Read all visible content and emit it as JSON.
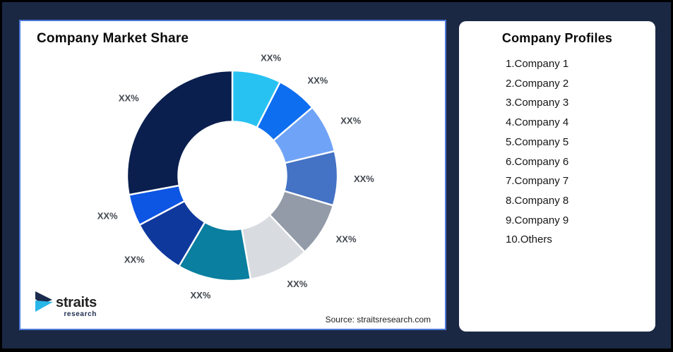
{
  "page": {
    "background_color": "#1B2844",
    "frame_color": "#000000"
  },
  "chart_card": {
    "border_color": "#4C78D8",
    "source": "Source: straitsresearch.com"
  },
  "logo": {
    "name": "straits",
    "subtitle": "research",
    "mark_top_color": "#1B2B4D",
    "mark_bottom_color": "#29B6E9"
  },
  "profiles": {
    "title": "Company Profiles",
    "items": [
      "1.Company 1",
      "2.Company 2",
      "3.Company 3",
      "4.Company 4",
      "5.Company 5",
      "6.Company 6",
      "7.Company 7",
      "8.Company 8",
      "9.Company 9",
      "10.Others"
    ]
  },
  "chart_data": {
    "type": "pie",
    "subtype": "donut",
    "title": "Company Market Share",
    "values_shown_as": "XX% placeholder labels (no numeric values printed)",
    "label_color": "#42474F",
    "geometry": {
      "outer_radius_px": 149,
      "inner_radius_px": 76.5,
      "label_radius_px": 172
    },
    "slices": [
      {
        "name": "Company 1",
        "display_label": "XX%",
        "start_deg": 0,
        "end_deg": 27,
        "share_pct_est": 7.5,
        "color": "#27C2F2"
      },
      {
        "name": "Company 2",
        "display_label": "XX%",
        "start_deg": 27,
        "end_deg": 49.5,
        "share_pct_est": 6.3,
        "color": "#0D6EF0"
      },
      {
        "name": "Company 3",
        "display_label": "XX%",
        "start_deg": 49.5,
        "end_deg": 76.5,
        "share_pct_est": 7.5,
        "color": "#6FA3F7"
      },
      {
        "name": "Company 4",
        "display_label": "XX%",
        "start_deg": 76.5,
        "end_deg": 106.5,
        "share_pct_est": 8.3,
        "color": "#4472C4"
      },
      {
        "name": "Company 5",
        "display_label": "XX%",
        "start_deg": 106.5,
        "end_deg": 136.5,
        "share_pct_est": 8.3,
        "color": "#939BA8"
      },
      {
        "name": "Company 6",
        "display_label": "XX%",
        "start_deg": 136.5,
        "end_deg": 170,
        "share_pct_est": 9.3,
        "color": "#D8DBE0"
      },
      {
        "name": "Company 7",
        "display_label": "XX%",
        "start_deg": 170,
        "end_deg": 210.5,
        "share_pct_est": 11.3,
        "color": "#0A7FA0"
      },
      {
        "name": "Company 8",
        "display_label": "XX%",
        "start_deg": 210.5,
        "end_deg": 242,
        "share_pct_est": 8.7,
        "color": "#0F389D"
      },
      {
        "name": "Company 9",
        "display_label": "XX%",
        "start_deg": 242,
        "end_deg": 259.5,
        "share_pct_est": 4.9,
        "color": "#0D55E3"
      },
      {
        "name": "Others",
        "display_label": "XX%",
        "start_deg": 259.5,
        "end_deg": 360,
        "share_pct_est": 27.9,
        "color": "#0A1F4E"
      }
    ]
  }
}
